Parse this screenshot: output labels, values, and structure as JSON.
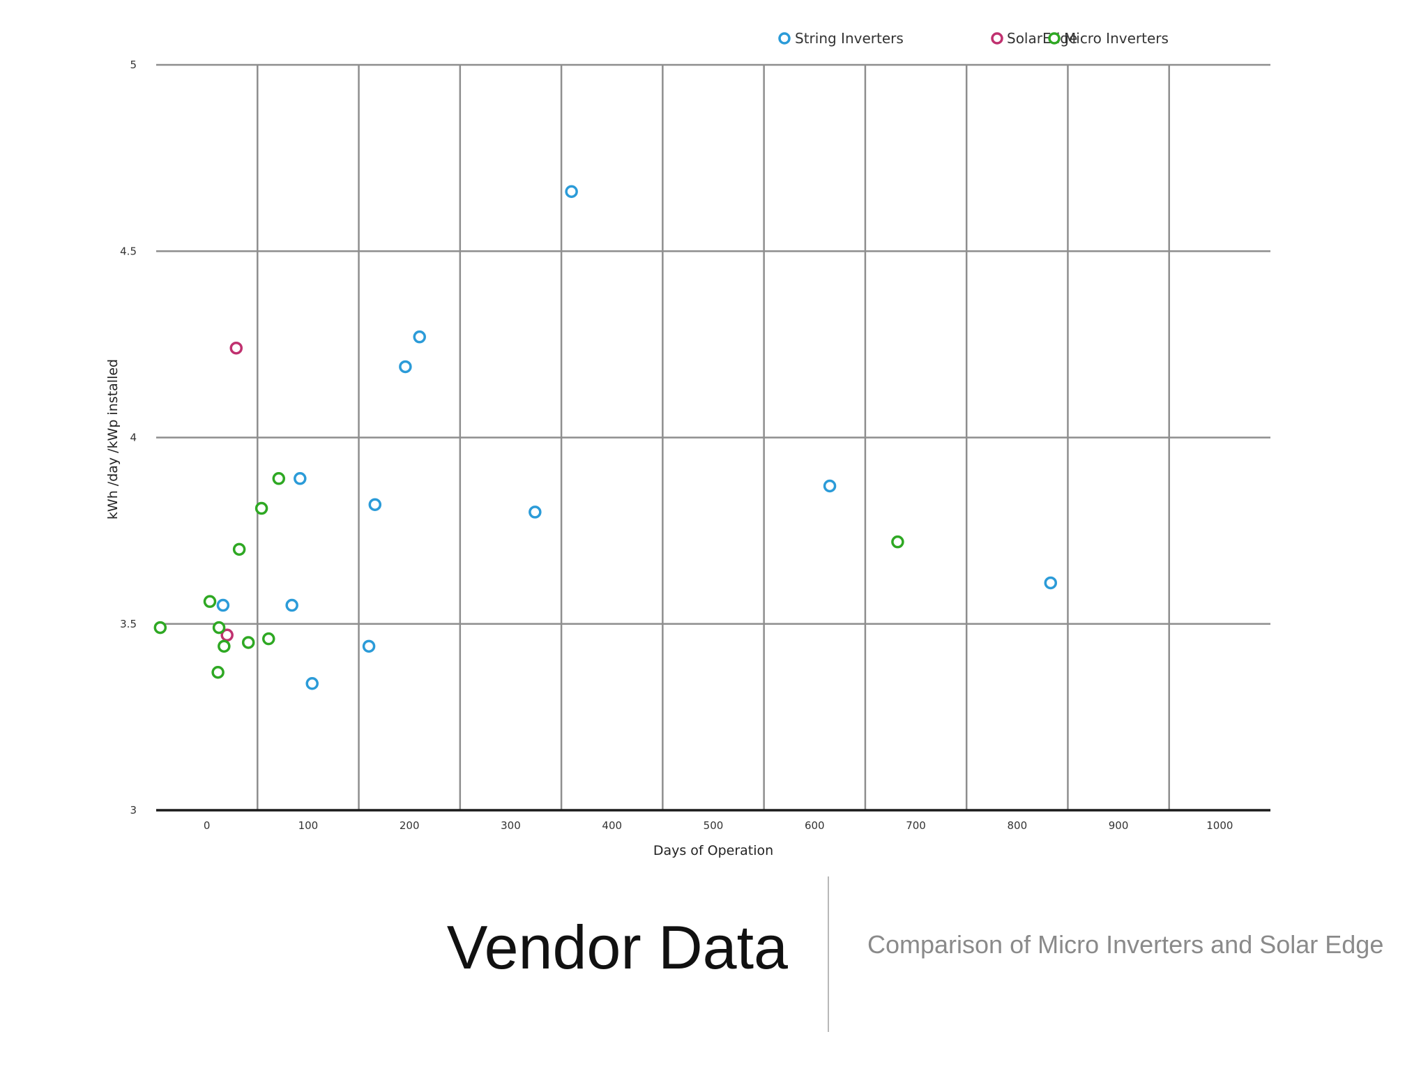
{
  "slide": {
    "title": "Vendor Data",
    "subtitle": "Comparison of Micro Inverters and Solar Edge"
  },
  "chart_data": {
    "type": "scatter",
    "xlabel": "Days of Operation",
    "ylabel": "kWh /day /kWp installed",
    "xlim": [
      -50,
      1050
    ],
    "ylim": [
      3,
      5
    ],
    "x_ticks": [
      0,
      100,
      200,
      300,
      400,
      500,
      600,
      700,
      800,
      900,
      1000
    ],
    "y_ticks": [
      3,
      3.5,
      4,
      4.5,
      5
    ],
    "y_tick_labels": [
      "3",
      "3.5",
      "4",
      "4.5",
      "5"
    ],
    "grid": true,
    "legend_position": "top",
    "series": [
      {
        "name": "String Inverters",
        "color": "#2b9bd8",
        "points": [
          {
            "x": 16,
            "y": 3.55
          },
          {
            "x": 84,
            "y": 3.55
          },
          {
            "x": 92,
            "y": 3.89
          },
          {
            "x": 104,
            "y": 3.34
          },
          {
            "x": 160,
            "y": 3.44
          },
          {
            "x": 166,
            "y": 3.82
          },
          {
            "x": 196,
            "y": 4.19
          },
          {
            "x": 210,
            "y": 4.27
          },
          {
            "x": 324,
            "y": 3.8
          },
          {
            "x": 360,
            "y": 4.66
          },
          {
            "x": 615,
            "y": 3.87
          },
          {
            "x": 833,
            "y": 3.61
          }
        ]
      },
      {
        "name": "SolarEdge",
        "color": "#c0316f",
        "points": [
          {
            "x": 29,
            "y": 4.24
          },
          {
            "x": 20,
            "y": 3.47
          }
        ]
      },
      {
        "name": "Micro Inverters",
        "color": "#2ea823",
        "points": [
          {
            "x": -46,
            "y": 3.49
          },
          {
            "x": 3,
            "y": 3.56
          },
          {
            "x": 12,
            "y": 3.49
          },
          {
            "x": 11,
            "y": 3.37
          },
          {
            "x": 17,
            "y": 3.44
          },
          {
            "x": 32,
            "y": 3.7
          },
          {
            "x": 41,
            "y": 3.45
          },
          {
            "x": 54,
            "y": 3.81
          },
          {
            "x": 61,
            "y": 3.46
          },
          {
            "x": 71,
            "y": 3.89
          },
          {
            "x": 682,
            "y": 3.72
          }
        ]
      }
    ]
  }
}
